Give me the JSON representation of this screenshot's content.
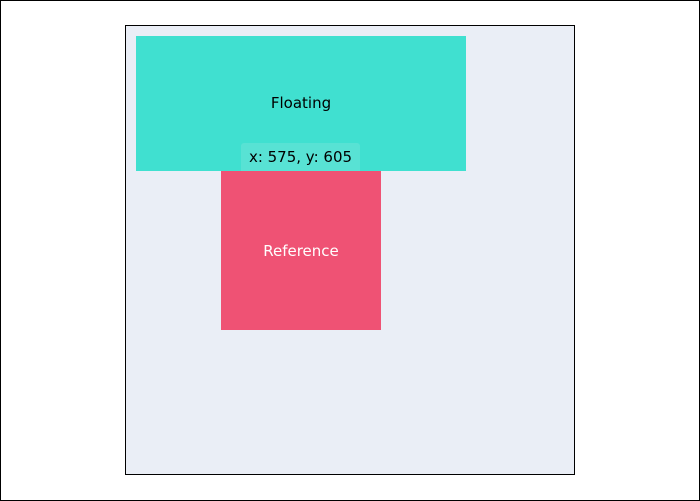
{
  "floating": {
    "label": "Floating"
  },
  "reference": {
    "label": "Reference"
  },
  "position_readout": {
    "text": "x: 575, y: 605"
  },
  "colors": {
    "container_bg": "#eaeef6",
    "floating_bg": "#40e0d0",
    "reference_bg": "#ef5274",
    "readout_bg": "#58e2d4"
  }
}
